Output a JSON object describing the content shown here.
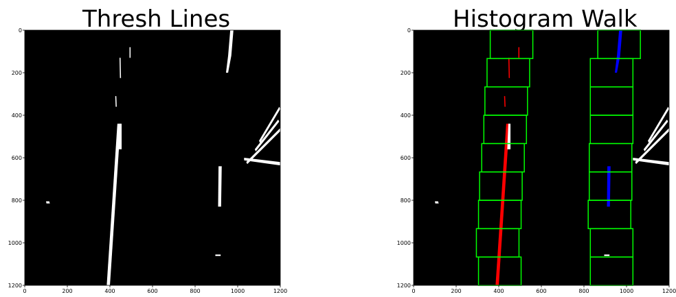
{
  "panels": [
    {
      "title": "Thresh Lines",
      "xticks": [
        "0",
        "200",
        "400",
        "600",
        "800",
        "1000",
        "1200"
      ],
      "yticks": [
        "0",
        "200",
        "400",
        "600",
        "800",
        "1000",
        "1200"
      ]
    },
    {
      "title": "Histogram Walk",
      "xticks": [
        "0",
        "200",
        "400",
        "600",
        "800",
        "1000",
        "1200"
      ],
      "yticks": [
        "0",
        "200",
        "400",
        "600",
        "800",
        "1000",
        "1200"
      ]
    }
  ],
  "colors": {
    "background": "#000000",
    "lane_pixels": "#ffffff",
    "left_lane": "#ff0000",
    "right_lane": "#0000ff",
    "window_box": "#00ff00"
  }
}
